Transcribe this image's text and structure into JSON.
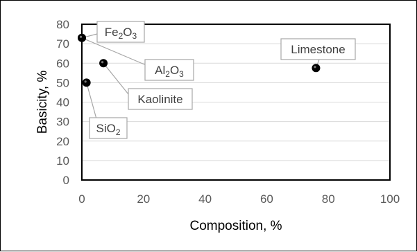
{
  "chart_data": {
    "type": "scatter",
    "xlabel": "Composition, %",
    "ylabel": "Basicity, %",
    "xlim": [
      0,
      100
    ],
    "ylim": [
      0,
      80
    ],
    "x_ticks": [
      0,
      20,
      40,
      60,
      80,
      100
    ],
    "y_ticks": [
      0,
      10,
      20,
      30,
      40,
      50,
      60,
      70,
      80
    ],
    "grid": "horizontal",
    "point_color": "#000000",
    "points": [
      {
        "label": "Fe2O3",
        "label_main": "Fe",
        "label_parts": [
          {
            "t": "Fe",
            "sub": false
          },
          {
            "t": "2",
            "sub": true
          },
          {
            "t": "O",
            "sub": false
          },
          {
            "t": "3",
            "sub": true
          }
        ],
        "x": 0,
        "y": 73
      },
      {
        "label": "Al2O3",
        "label_parts": [
          {
            "t": "Al",
            "sub": false
          },
          {
            "t": "2",
            "sub": true
          },
          {
            "t": "O",
            "sub": false
          },
          {
            "t": "3",
            "sub": true
          }
        ],
        "x": 0,
        "y": 73
      },
      {
        "label": "Kaolinite",
        "label_parts": [
          {
            "t": "Kaolinite",
            "sub": false
          }
        ],
        "x": 7,
        "y": 60
      },
      {
        "label": "SiO2",
        "label_parts": [
          {
            "t": "SiO",
            "sub": false
          },
          {
            "t": "2",
            "sub": true
          }
        ],
        "x": 1.5,
        "y": 50
      },
      {
        "label": "Limestone",
        "label_parts": [
          {
            "t": "Limestone",
            "sub": false
          }
        ],
        "x": 76,
        "y": 57.5
      }
    ]
  }
}
